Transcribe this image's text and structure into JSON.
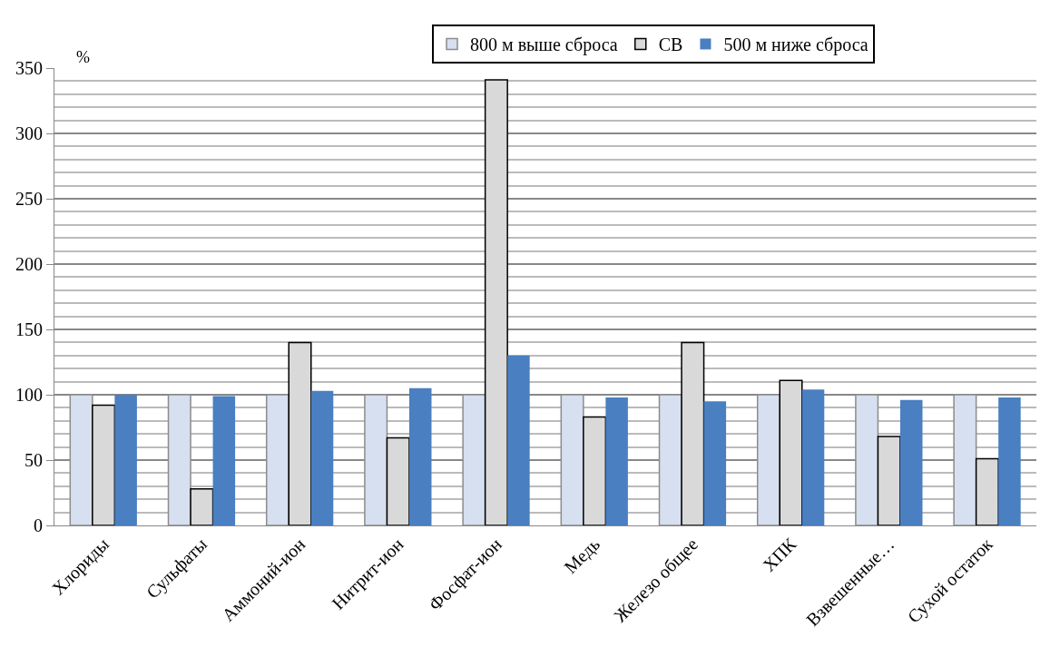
{
  "chart_data": {
    "type": "bar",
    "ylabel": "%",
    "categories": [
      "Хлориды",
      "Сульфаты",
      "Аммоний-ион",
      "Нитрит-ион",
      "Фосфат-ион",
      "Медь",
      "Железо общее",
      "ХПК",
      "Взвешенные…",
      "Сухой остаток"
    ],
    "series": [
      {
        "name": "800 м выше сброса",
        "color": "#d6e0f0",
        "values": [
          100,
          100,
          100,
          100,
          100,
          100,
          100,
          100,
          100,
          100
        ]
      },
      {
        "name": "СВ",
        "color": "#d9d9d9",
        "values": [
          92,
          28,
          140,
          67,
          341,
          83,
          140,
          111,
          68,
          51
        ]
      },
      {
        "name": "500 м ниже сброса",
        "color": "#4a7fc1",
        "values": [
          100,
          99,
          103,
          105,
          130,
          98,
          95,
          104,
          96,
          98
        ]
      }
    ],
    "ylim": [
      0,
      350
    ],
    "yticks": [
      0,
      50,
      100,
      150,
      200,
      250,
      300,
      350
    ],
    "grid": "y",
    "legend": "top"
  }
}
